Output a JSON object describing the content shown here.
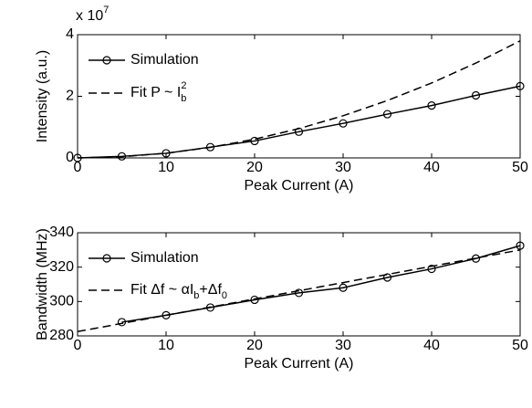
{
  "chart_data": [
    {
      "type": "line",
      "ylabel": "Intensity (a.u.)",
      "xlabel": "Peak Current (A)",
      "multiplier": "x 10",
      "multiplier_exponent": "7",
      "xlim": [
        0,
        50
      ],
      "xticks": [
        0,
        10,
        20,
        30,
        40,
        50
      ],
      "ylim": [
        0,
        4
      ],
      "yticks": [
        0,
        2,
        4
      ],
      "grid": false,
      "series": [
        {
          "name": "Simulation",
          "color": "#000000",
          "line_style": "solid",
          "marker": "circle",
          "x": [
            0,
            5,
            10,
            15,
            20,
            25,
            30,
            35,
            40,
            45,
            50
          ],
          "values": [
            0,
            0.05,
            0.15,
            0.35,
            0.55,
            0.85,
            1.12,
            1.42,
            1.7,
            2.03,
            2.33
          ]
        },
        {
          "name": "Fit  P ~ I",
          "name_parts": [
            {
              "text": "b",
              "shift": "sub"
            },
            {
              "text": "2",
              "shift": "sup"
            }
          ],
          "color": "#000000",
          "line_style": "dashed",
          "marker": "none",
          "x": [
            0,
            5,
            10,
            15,
            20,
            25,
            30,
            35,
            40,
            45,
            50
          ],
          "values": [
            0,
            0.038,
            0.152,
            0.342,
            0.608,
            0.95,
            1.368,
            1.862,
            2.432,
            3.078,
            3.8
          ]
        }
      ]
    },
    {
      "type": "line",
      "ylabel": "Bandwidth (MHz)",
      "xlabel": "Peak Current (A)",
      "xlim": [
        0,
        50
      ],
      "xticks": [
        0,
        10,
        20,
        30,
        40,
        50
      ],
      "ylim": [
        280,
        340
      ],
      "yticks": [
        280,
        300,
        320,
        340
      ],
      "grid": false,
      "series": [
        {
          "name": "Simulation",
          "color": "#000000",
          "line_style": "solid",
          "marker": "circle",
          "x": [
            5,
            10,
            15,
            20,
            25,
            30,
            35,
            40,
            45,
            50
          ],
          "values": [
            288,
            292,
            296.5,
            301,
            305,
            308,
            314,
            319,
            325,
            332.5
          ]
        },
        {
          "name": "Fit  Δf ~ αI",
          "name_parts": [
            {
              "text": "b",
              "shift": "sub"
            },
            {
              "text": "+Δf",
              "shift": "none"
            },
            {
              "text": "0",
              "shift": "sub"
            }
          ],
          "color": "#000000",
          "line_style": "dashed",
          "marker": "none",
          "x": [
            0,
            50
          ],
          "values": [
            282.5,
            330
          ]
        }
      ]
    }
  ]
}
